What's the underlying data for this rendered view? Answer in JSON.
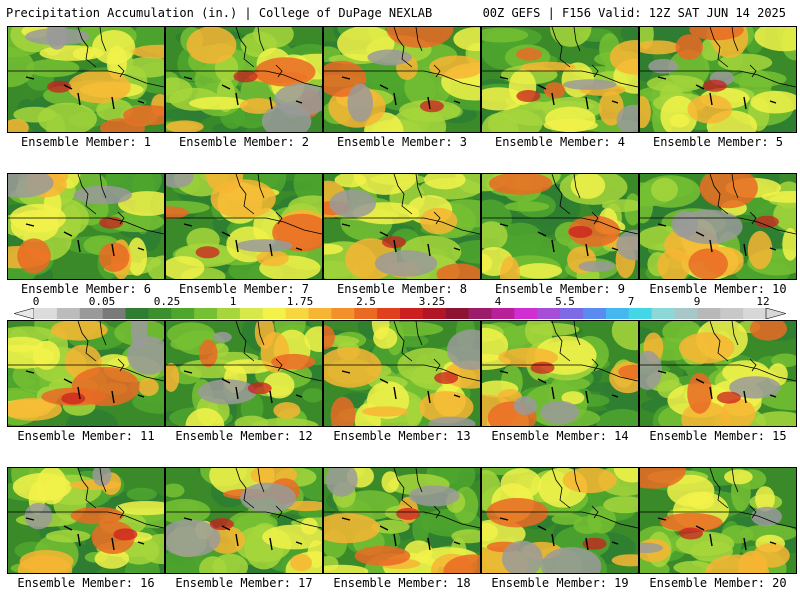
{
  "header": {
    "title": "Precipitation Accumulation (in.) | College of DuPage NEXLAB",
    "valid": "00Z GEFS | F156 Valid: 12Z SAT JUN 14 2025"
  },
  "panels": [
    {
      "label": "Ensemble Member: 1"
    },
    {
      "label": "Ensemble Member: 2"
    },
    {
      "label": "Ensemble Member: 3"
    },
    {
      "label": "Ensemble Member: 4"
    },
    {
      "label": "Ensemble Member: 5"
    },
    {
      "label": "Ensemble Member: 6"
    },
    {
      "label": "Ensemble Member: 7"
    },
    {
      "label": "Ensemble Member: 8"
    },
    {
      "label": "Ensemble Member: 9"
    },
    {
      "label": "Ensemble Member: 10"
    },
    {
      "label": "Ensemble Member: 11"
    },
    {
      "label": "Ensemble Member: 12"
    },
    {
      "label": "Ensemble Member: 13"
    },
    {
      "label": "Ensemble Member: 14"
    },
    {
      "label": "Ensemble Member: 15"
    },
    {
      "label": "Ensemble Member: 16"
    },
    {
      "label": "Ensemble Member: 17"
    },
    {
      "label": "Ensemble Member: 18"
    },
    {
      "label": "Ensemble Member: 19"
    },
    {
      "label": "Ensemble Member: 20"
    }
  ],
  "colorbar": {
    "ticks": [
      "0",
      "0.05",
      "0.25",
      "1",
      "1.75",
      "2.5",
      "3.25",
      "4",
      "5.5",
      "7",
      "9",
      "12"
    ],
    "colors": [
      "#dcdcdc",
      "#bcbcbc",
      "#9a9a9a",
      "#7a7a7a",
      "#2e7d32",
      "#3c8f2c",
      "#4fa62e",
      "#76c033",
      "#a6d63c",
      "#d6e84a",
      "#f2f24a",
      "#f7d640",
      "#f7b534",
      "#f2902a",
      "#ea6a24",
      "#e0401e",
      "#cc1f1f",
      "#b01626",
      "#8c1432",
      "#9c1c6c",
      "#b8209a",
      "#d02ed0",
      "#a64ed8",
      "#7c6ae6",
      "#5a8cf0",
      "#46b8f0",
      "#44d6e6",
      "#8cd8d8",
      "#a8c8c8",
      "#b8b8b8",
      "#c8c8c8",
      "#d8d8d8"
    ]
  }
}
